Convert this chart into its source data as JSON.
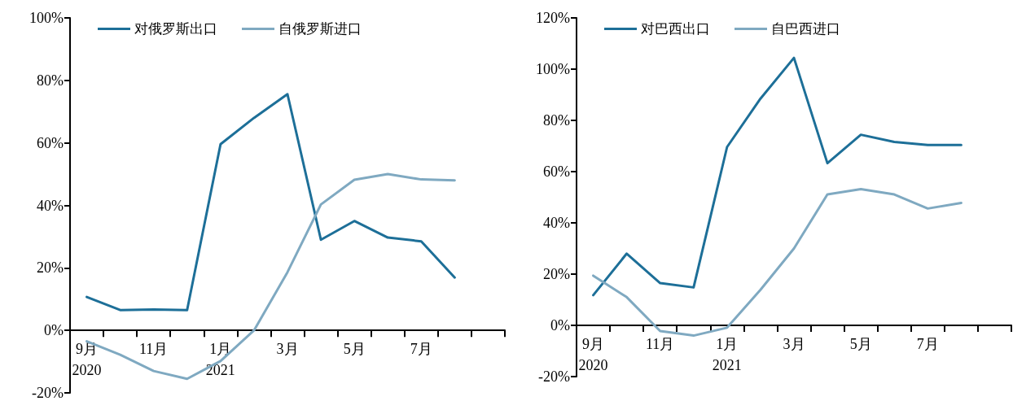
{
  "chart_data": [
    {
      "type": "line",
      "categories": [
        "9月\n2020",
        null,
        "11月",
        null,
        "1月\n2021",
        null,
        "3月",
        null,
        "5月",
        null,
        "7月",
        null,
        null
      ],
      "series": [
        {
          "name": "对俄罗斯出口",
          "color": "#1d6f98",
          "values": [
            10.7,
            6.5,
            6.7,
            6.5,
            59.6,
            68,
            75.6,
            29,
            35,
            29.7,
            28.5,
            16.9,
            null
          ]
        },
        {
          "name": "自俄罗斯进口",
          "color": "#7fa9c1",
          "values": [
            -3.5,
            -7.8,
            -13,
            -15.5,
            -9.8,
            0,
            18.6,
            40.3,
            48.2,
            50,
            48.3,
            48,
            null
          ]
        }
      ],
      "ylim": [
        -20,
        100
      ],
      "yticks": [
        {
          "value": -20,
          "label": "-20%"
        },
        {
          "value": 0,
          "label": "0%"
        },
        {
          "value": 20,
          "label": "20%"
        },
        {
          "value": 40,
          "label": "40%"
        },
        {
          "value": 60,
          "label": "60%"
        },
        {
          "value": 80,
          "label": "80%"
        },
        {
          "value": 100,
          "label": "100%"
        }
      ],
      "grid": false,
      "legend": "top",
      "marker": "none",
      "line_style": "solid"
    },
    {
      "type": "line",
      "categories": [
        "9月\n2020",
        null,
        "11月",
        null,
        "1月\n2021",
        null,
        "3月",
        null,
        "5月",
        null,
        "7月",
        null,
        null
      ],
      "series": [
        {
          "name": "对巴西出口",
          "color": "#1d6f98",
          "values": [
            11.8,
            28,
            16.5,
            14.8,
            69.6,
            88.5,
            104.4,
            63.3,
            74.4,
            71.6,
            70.4,
            70.4,
            null
          ]
        },
        {
          "name": "自巴西进口",
          "color": "#7fa9c1",
          "values": [
            19.4,
            11,
            -2.2,
            -4,
            -0.9,
            13.9,
            30,
            51.1,
            53.2,
            51.1,
            45.6,
            47.8,
            null
          ]
        }
      ],
      "ylim": [
        -20,
        120
      ],
      "yticks": [
        {
          "value": -20,
          "label": "-20%"
        },
        {
          "value": 0,
          "label": "0%"
        },
        {
          "value": 20,
          "label": "20%"
        },
        {
          "value": 40,
          "label": "40%"
        },
        {
          "value": 60,
          "label": "60%"
        },
        {
          "value": 80,
          "label": "80%"
        },
        {
          "value": 100,
          "label": "100%"
        },
        {
          "value": 120,
          "label": "120%"
        }
      ],
      "grid": false,
      "legend": "top",
      "marker": "none",
      "line_style": "solid"
    }
  ]
}
